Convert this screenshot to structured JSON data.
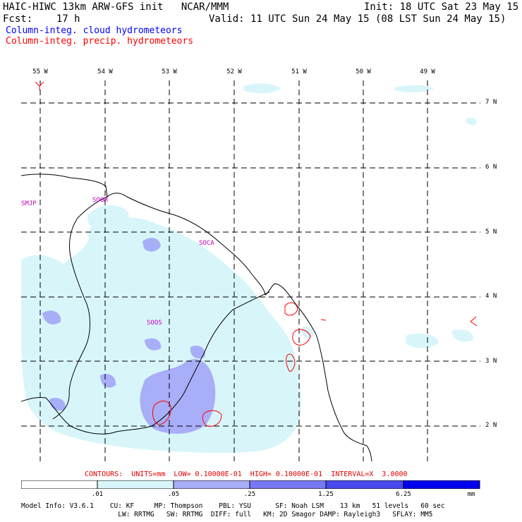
{
  "header": {
    "line1_left": "HAIC-HIWC 13km ARW-GFS init   NCAR/MMM",
    "line1_right": "Init: 18 UTC Sat 23 May 15",
    "line2_left": "Fcst:    17 h",
    "line2_right": "Valid: 11 UTC Sun 24 May 15 (08 LST Sun 24 May 15)",
    "field1": "Column-integ. cloud hydrometeors",
    "field2": "Column-integ. precip. hydrometeors",
    "field1_color": "#0000ff",
    "field2_color": "#ff0000"
  },
  "map": {
    "lon_labels": [
      "55 W",
      "54 W",
      "53 W",
      "52 W",
      "51 W",
      "50 W",
      "49 W"
    ],
    "lat_labels": [
      "7 N",
      "6 N",
      "5 N",
      "4 N",
      "3 N",
      "2 N"
    ],
    "stations": [
      "SMJP",
      "SOGM",
      "SOCA",
      "SOOS"
    ],
    "shade_colors": {
      "light": "#d8f6fa",
      "mid": "#a9aef8",
      "dark": "#5a5af0"
    },
    "contour_color": "#ff0000"
  },
  "contour_info": "CONTOURS:  UNITS=mm  LOW= 0.10000E-01  HIGH= 0.10000E-01  INTERVAL=X  3.0000",
  "legend": {
    "ticks": [
      ".01",
      ".05",
      ".25",
      "1.25",
      "6.25"
    ],
    "units": "mm",
    "colors": [
      "#ffffff",
      "#d8f6fa",
      "#a9aef8",
      "#7878f4",
      "#4848ec",
      "#0000ee"
    ]
  },
  "model_info": {
    "line1": "Model Info: V3.6.1    CU: KF     MP: Thompson    PBL: YSU      SF: Noah LSM    13 km   51 levels   60 sec",
    "line2": "                        LW: RRTMG   SW: RRTMG  DIFF: full   KM: 2D Smagor DAMP: Rayleigh3   SFLAY: MM5"
  }
}
